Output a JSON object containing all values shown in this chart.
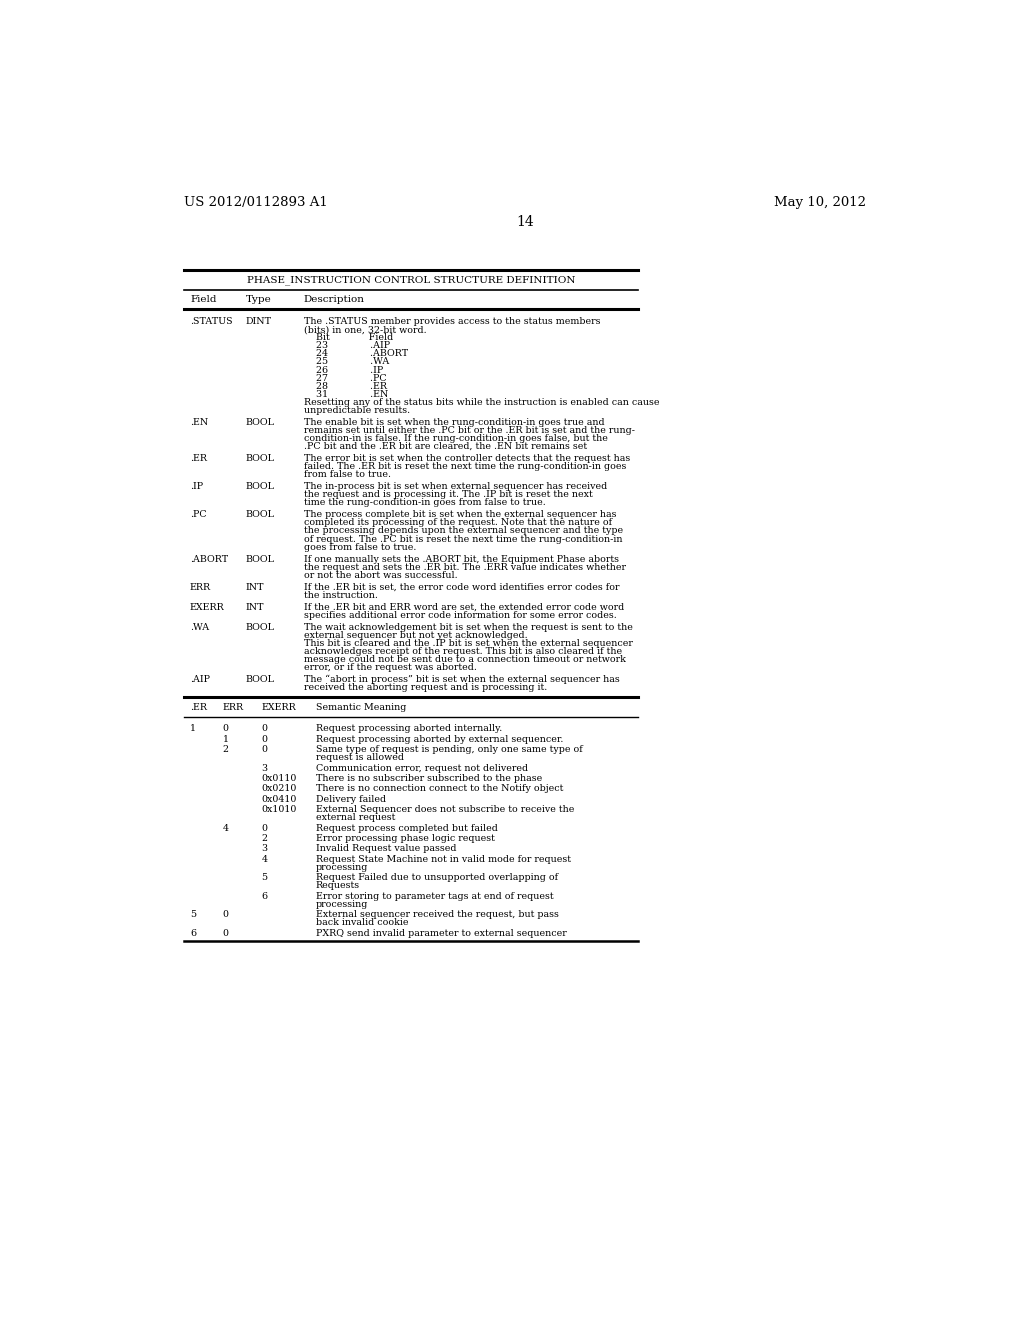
{
  "header_left": "US 2012/0112893 A1",
  "header_right": "May 10, 2012",
  "page_number": "14",
  "table_title": "PHASE_INSTRUCTION CONTROL STRUCTURE DEFINITION",
  "col_headers": [
    "Field",
    "Type",
    "Description"
  ],
  "background_color": "#ffffff",
  "text_color": "#000000",
  "font_size": 6.8,
  "row_data": [
    [
      ".STATUS",
      "DINT",
      "The .STATUS member provides access to the status members\n(bits) in one, 32-bit word.\n    Bit             Field\n    23              .AIP\n    24              .ABORT\n    25              .WA\n    26              .IP\n    27              .PC\n    28              .ER\n    31              .EN\nResetting any of the status bits while the instruction is enabled can cause\nunpredictable results."
    ],
    [
      ".EN",
      "BOOL",
      "The enable bit is set when the rung-condition-in goes true and\nremains set until either the .PC bit or the .ER bit is set and the rung-\ncondition-in is false. If the rung-condition-in goes false, but the\n.PC bit and the .ER bit are cleared, the .EN bit remains set"
    ],
    [
      ".ER",
      "BOOL",
      "The error bit is set when the controller detects that the request has\nfailed. The .ER bit is reset the next time the rung-condition-in goes\nfrom false to true."
    ],
    [
      ".IP",
      "BOOL",
      "The in-process bit is set when external sequencer has received\nthe request and is processing it. The .IP bit is reset the next\ntime the rung-condition-in goes from false to true."
    ],
    [
      ".PC",
      "BOOL",
      "The process complete bit is set when the external sequencer has\ncompleted its processing of the request. Note that the nature of\nthe processing depends upon the external sequencer and the type\nof request. The .PC bit is reset the next time the rung-condition-in\ngoes from false to true."
    ],
    [
      ".ABORT",
      "BOOL",
      "If one manually sets the .ABORT bit, the Equipment Phase aborts\nthe request and sets the .ER bit. The .ERR value indicates whether\nor not the abort was successful."
    ],
    [
      "ERR",
      "INT",
      "If the .ER bit is set, the error code word identifies error codes for\nthe instruction."
    ],
    [
      "EXERR",
      "INT",
      "If the .ER bit and ERR word are set, the extended error code word\nspecifies additional error code information for some error codes."
    ],
    [
      ".WA",
      "BOOL",
      "The wait acknowledgement bit is set when the request is sent to the\nexternal sequencer but not yet acknowledged.\nThis bit is cleared and the .IP bit is set when the external sequencer\nacknowledges receipt of the request. This bit is also cleared if the\nmessage could not be sent due to a connection timeout or network\nerror, or if the request was aborted."
    ],
    [
      ".AIP",
      "BOOL",
      "The “abort in process” bit is set when the external sequencer has\nreceived the aborting request and is processing it."
    ]
  ],
  "bottom_col_headers": [
    ".ER",
    "ERR",
    "EXERR",
    "Semantic Meaning"
  ],
  "bottom_rows": [
    [
      "1",
      "0",
      "0",
      "Request processing aborted internally."
    ],
    [
      "",
      "1",
      "0",
      "Request processing aborted by external sequencer."
    ],
    [
      "",
      "2",
      "0",
      "Same type of request is pending, only one same type of\nrequest is allowed"
    ],
    [
      "",
      "",
      "3",
      "Communication error, request not delivered"
    ],
    [
      "",
      "",
      "0x0110",
      "There is no subscriber subscribed to the phase"
    ],
    [
      "",
      "",
      "0x0210",
      "There is no connection connect to the Notify object"
    ],
    [
      "",
      "",
      "0x0410",
      "Delivery failed"
    ],
    [
      "",
      "",
      "0x1010",
      "External Sequencer does not subscribe to receive the\nexternal request"
    ],
    [
      "",
      "4",
      "0",
      "Request process completed but failed"
    ],
    [
      "",
      "",
      "2",
      "Error processing phase logic request"
    ],
    [
      "",
      "",
      "3",
      "Invalid Request value passed"
    ],
    [
      "",
      "",
      "4",
      "Request State Machine not in valid mode for request\nprocessing"
    ],
    [
      "",
      "",
      "5",
      "Request Failed due to unsupported overlapping of\nRequests"
    ],
    [
      "",
      "",
      "6",
      "Error storing to parameter tags at end of request\nprocessing"
    ],
    [
      "5",
      "0",
      "",
      "External sequencer received the request, but pass\nback invalid cookie"
    ],
    [
      "6",
      "0",
      "",
      "PXRQ send invalid parameter to external sequencer"
    ]
  ]
}
